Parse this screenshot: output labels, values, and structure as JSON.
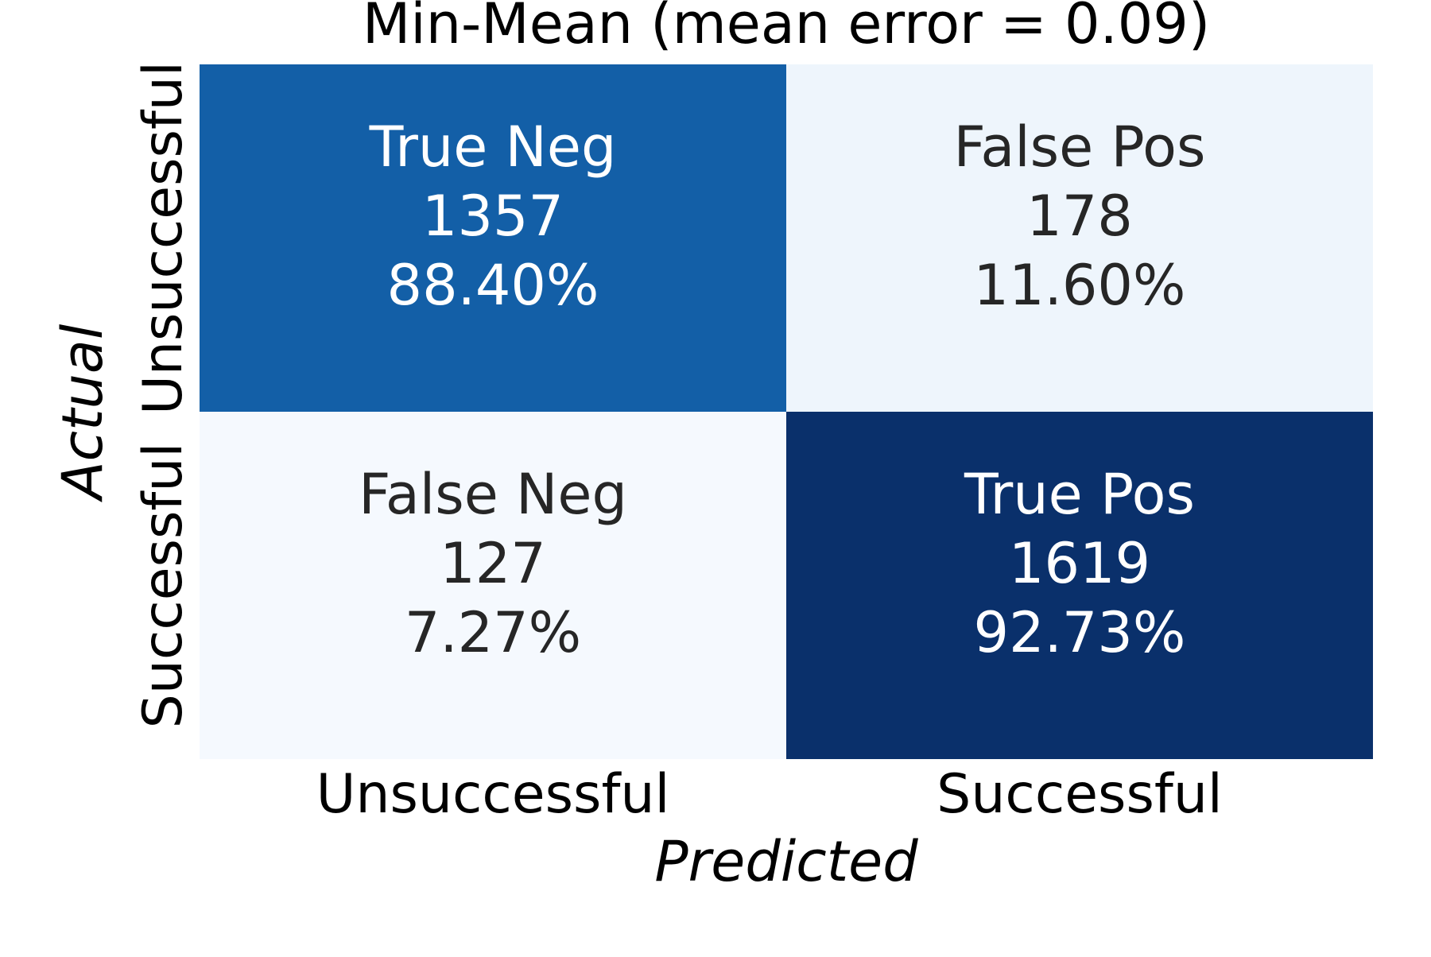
{
  "chart_data": {
    "type": "heatmap",
    "title": "Min-Mean (mean error = 0.09)",
    "xlabel": "Predicted",
    "ylabel": "Actual",
    "x_categories": [
      "Unsuccessful",
      "Successful"
    ],
    "y_categories": [
      "Unsuccessful",
      "Successful"
    ],
    "colormap": "Blues",
    "colorbar": false,
    "cells": [
      {
        "row": 0,
        "col": 0,
        "label": "True Neg",
        "count": 1357,
        "percent": "88.40%",
        "value": 0.884,
        "color": "#135fa7",
        "text_color": "#ffffff"
      },
      {
        "row": 0,
        "col": 1,
        "label": "False Pos",
        "count": 178,
        "percent": "11.60%",
        "value": 0.116,
        "color": "#eef5fc",
        "text_color": "#262626"
      },
      {
        "row": 1,
        "col": 0,
        "label": "False Neg",
        "count": 127,
        "percent": "7.27%",
        "value": 0.0727,
        "color": "#f5f9fe",
        "text_color": "#262626"
      },
      {
        "row": 1,
        "col": 1,
        "label": "True Pos",
        "count": 1619,
        "percent": "92.73%",
        "value": 0.9273,
        "color": "#0a306b",
        "text_color": "#ffffff"
      }
    ]
  }
}
